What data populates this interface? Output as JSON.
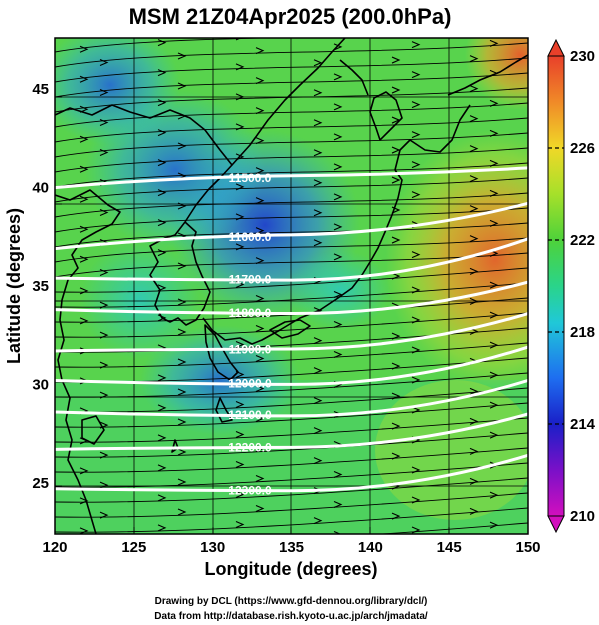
{
  "title": "MSM 21Z04Apr2025 (200.0hPa)",
  "xlabel": "Longitude (degrees)",
  "ylabel": "Latitude  (degrees)",
  "credits": [
    "Drawing by DCL (https://www.gfd-dennou.org/library/dcl/)",
    "Data from http://database.rish.kyoto-u.ac.jp/arch/jmadata/"
  ],
  "chart_data": {
    "type": "heatmap",
    "title": "MSM 21Z04Apr2025 (200.0hPa)",
    "xlabel": "Longitude (degrees)",
    "ylabel": "Latitude  (degrees)",
    "xlim": [
      120,
      150
    ],
    "ylim": [
      22.4,
      47.6
    ],
    "x_ticks": [
      120,
      125,
      130,
      135,
      140,
      145,
      150
    ],
    "y_ticks": [
      25,
      30,
      35,
      40,
      45
    ],
    "grid": true,
    "colorbar": {
      "min": 210,
      "max": 230,
      "ticks": [
        210,
        214,
        218,
        222,
        226,
        230
      ],
      "placement": "right"
    },
    "contours": [
      {
        "label": "11500.0",
        "lat_at_120": 40.0,
        "lat_at_135": 40.6,
        "lat_at_150": 41.0
      },
      {
        "label": "11600.0",
        "lat_at_120": 36.9,
        "lat_at_135": 37.6,
        "lat_at_150": 39.2
      },
      {
        "label": "11700.0",
        "lat_at_120": 35.4,
        "lat_at_135": 35.3,
        "lat_at_150": 37.4
      },
      {
        "label": "11800.0",
        "lat_at_120": 33.8,
        "lat_at_135": 33.6,
        "lat_at_150": 35.2
      },
      {
        "label": "11900.0",
        "lat_at_120": 31.7,
        "lat_at_135": 31.8,
        "lat_at_150": 33.6
      },
      {
        "label": "12000.0",
        "lat_at_120": 30.2,
        "lat_at_135": 30.0,
        "lat_at_150": 31.9
      },
      {
        "label": "12100.0",
        "lat_at_120": 28.6,
        "lat_at_135": 28.4,
        "lat_at_150": 30.2
      },
      {
        "label": "12200.0",
        "lat_at_120": 26.7,
        "lat_at_135": 26.8,
        "lat_at_150": 28.5
      },
      {
        "label": "12300.0",
        "lat_at_120": 24.7,
        "lat_at_135": 24.6,
        "lat_at_150": 26.4
      }
    ],
    "temperature_field_features": [
      {
        "name": "cold core",
        "lon": 133,
        "lat": 39,
        "value": 214
      },
      {
        "name": "cold pool",
        "lon": 130,
        "lat": 31,
        "value": 215
      },
      {
        "name": "warm core",
        "lon": 148,
        "lat": 37,
        "value": 228
      },
      {
        "name": "warm corner",
        "lon": 149,
        "lat": 46,
        "value": 228
      }
    ],
    "wind_flow": "westerly, stronger south of 35N"
  }
}
